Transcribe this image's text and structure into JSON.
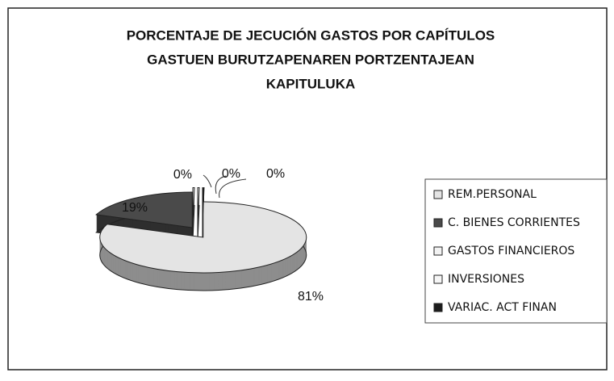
{
  "chart_data": {
    "type": "pie3d",
    "title": [
      "PORCENTAJE DE JECUCIÓN GASTOS POR CAPÍTULOS",
      "GASTUEN BURUTZAPENAREN PORTZENTAJEAN",
      "KAPITULUKA"
    ],
    "categories": [
      "REM.PERSONAL",
      "C. BIENES CORRIENTES",
      "GASTOS FINANCIEROS",
      "INVERSIONES",
      "VARIAC. ACT FINAN"
    ],
    "values": [
      81,
      19,
      0,
      0,
      0
    ],
    "value_labels": [
      "81%",
      "19%",
      "0%",
      "0%",
      "0%"
    ],
    "colors": [
      "#e4e4e4",
      "#4a4a4a",
      "#f2f2f2",
      "#f6f6f6",
      "#1c1c1c"
    ],
    "legend": "right"
  }
}
